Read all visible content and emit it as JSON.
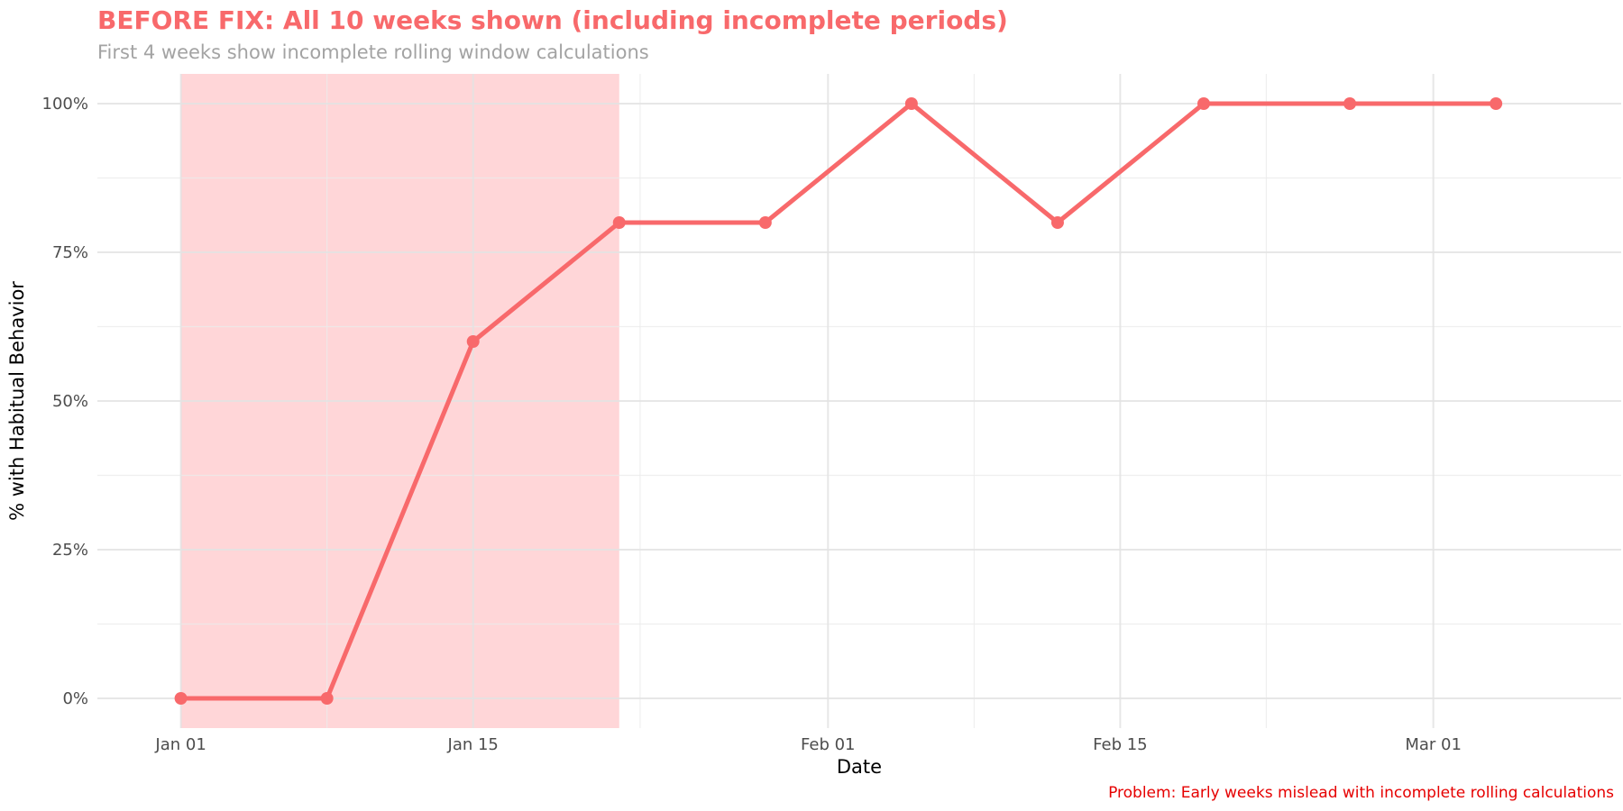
{
  "chart_data": {
    "type": "line",
    "title": "BEFORE FIX: All 10 weeks shown (including incomplete periods)",
    "subtitle": "First 4 weeks show incomplete rolling window calculations",
    "caption": "Problem: Early weeks mislead with incomplete rolling calculations",
    "xlabel": "Date",
    "ylabel": "% with Habitual Behavior",
    "x": [
      "2024-01-01",
      "2024-01-08",
      "2024-01-15",
      "2024-01-22",
      "2024-01-29",
      "2024-02-05",
      "2024-02-12",
      "2024-02-19",
      "2024-02-26",
      "2024-03-04"
    ],
    "y": [
      0,
      0,
      60,
      80,
      80,
      100,
      80,
      100,
      100,
      100
    ],
    "x_ticks": [
      {
        "date": "2024-01-01",
        "label": "Jan 01"
      },
      {
        "date": "2024-01-15",
        "label": "Jan 15"
      },
      {
        "date": "2024-02-01",
        "label": "Feb 01"
      },
      {
        "date": "2024-02-15",
        "label": "Feb 15"
      },
      {
        "date": "2024-03-01",
        "label": "Mar 01"
      }
    ],
    "x_minor_ticks": [
      "2024-01-08",
      "2024-01-23",
      "2024-02-08",
      "2024-02-22"
    ],
    "xlim": [
      "2023-12-28",
      "2024-03-10"
    ],
    "y_ticks": [
      {
        "value": 0,
        "label": "0%"
      },
      {
        "value": 25,
        "label": "25%"
      },
      {
        "value": 50,
        "label": "50%"
      },
      {
        "value": 75,
        "label": "75%"
      },
      {
        "value": 100,
        "label": "100%"
      }
    ],
    "ylim": [
      -5,
      105
    ],
    "highlight_region": {
      "x_start": "2024-01-01",
      "x_end": "2024-01-22",
      "color": "#ffd6d8"
    },
    "line_color": "#f8696b",
    "grid": true,
    "legend": "none"
  }
}
